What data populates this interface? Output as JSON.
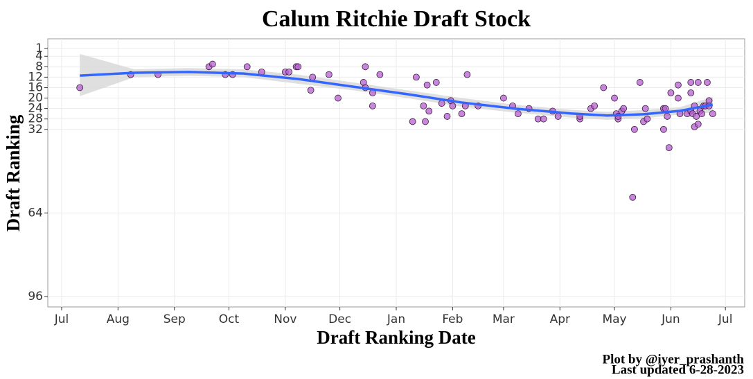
{
  "chart_data": {
    "type": "scatter",
    "title": "Calum Ritchie Draft Stock",
    "x_label": "Draft Ranking Date",
    "y_label": "Draft Ranking",
    "caption": [
      "Plot by @iyer_prashanth",
      "Last updated 6-28-2023"
    ],
    "xlim": [
      -7.6,
      375.6
    ],
    "ylim": [
      100,
      -2.7
    ],
    "reversed_y": true,
    "grid": true,
    "xticks": [
      {
        "value": 0,
        "label": "Jul"
      },
      {
        "value": 31,
        "label": "Aug"
      },
      {
        "value": 62,
        "label": "Sep"
      },
      {
        "value": 92,
        "label": "Oct"
      },
      {
        "value": 123,
        "label": "Nov"
      },
      {
        "value": 153,
        "label": "Dec"
      },
      {
        "value": 184,
        "label": "Jan"
      },
      {
        "value": 215,
        "label": "Feb"
      },
      {
        "value": 243,
        "label": "Mar"
      },
      {
        "value": 274,
        "label": "Apr"
      },
      {
        "value": 304,
        "label": "May"
      },
      {
        "value": 335,
        "label": "Jun"
      },
      {
        "value": 365,
        "label": "Jul"
      }
    ],
    "yticks": [
      1,
      4,
      8,
      12,
      16,
      20,
      24,
      28,
      32,
      64,
      96
    ],
    "color": "#b65fcf",
    "x": [
      10,
      38,
      53,
      81,
      83,
      90,
      94,
      102,
      110,
      123,
      125,
      129,
      130,
      137,
      138,
      147,
      152,
      166,
      167,
      167,
      171,
      171,
      175,
      193,
      195,
      199,
      200,
      201,
      202,
      206,
      209,
      212,
      214,
      215,
      220,
      222,
      223,
      229,
      243,
      248,
      251,
      257,
      262,
      265,
      270,
      273,
      285,
      285,
      291,
      293,
      298,
      304,
      305,
      306,
      306,
      308,
      309,
      314,
      315,
      318,
      320,
      321,
      322,
      331,
      331,
      332,
      333,
      334,
      335,
      339,
      339,
      340,
      344,
      346,
      346,
      346,
      347,
      348,
      348,
      349,
      350,
      350,
      351,
      352,
      353,
      354,
      355,
      356,
      356,
      358
    ],
    "values": [
      16,
      11,
      11,
      8,
      7,
      11,
      11,
      8,
      10,
      10,
      10,
      8,
      8,
      17,
      12,
      11,
      20,
      14,
      8,
      16,
      18,
      23,
      11,
      29,
      12,
      23,
      29,
      15,
      25,
      14,
      22,
      27,
      21,
      23,
      26,
      23,
      11,
      23,
      20,
      23,
      26,
      24,
      28,
      28,
      25,
      27,
      28,
      27,
      24,
      23,
      16,
      20,
      26,
      28,
      27,
      25,
      24,
      58,
      32,
      14,
      29,
      24,
      28,
      32,
      24,
      24,
      27,
      39,
      18,
      15,
      20,
      26,
      26,
      14,
      18,
      25,
      26,
      23,
      31,
      27,
      14,
      30,
      25,
      26,
      23,
      23,
      14,
      21,
      23,
      26
    ],
    "smooth": {
      "color": "#3366ff",
      "band_color": "#d9d9d9",
      "x": [
        10,
        40,
        70,
        100,
        130,
        160,
        190,
        220,
        250,
        280,
        300,
        320,
        340,
        358
      ],
      "values": [
        11.4,
        10.3,
        10,
        10.6,
        12.7,
        15.6,
        18.5,
        21.7,
        24.1,
        25.9,
        26.7,
        26.2,
        24.9,
        22.5
      ],
      "lower": [
        3.1,
        9,
        8.5,
        9,
        11,
        14,
        17,
        20,
        22.6,
        24.5,
        25.3,
        24.6,
        23.5,
        19.5
      ],
      "upper": [
        19.3,
        12,
        11.5,
        12,
        14.5,
        17,
        20,
        23.3,
        25.6,
        27.5,
        28.3,
        27.8,
        26.3,
        25.5
      ]
    }
  }
}
